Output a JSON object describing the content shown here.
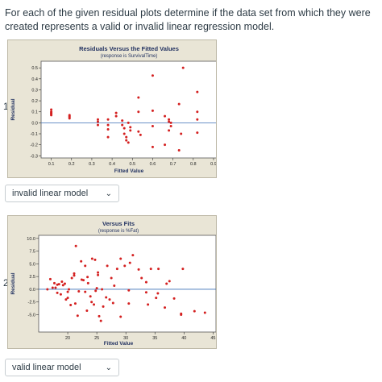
{
  "question": "For each of the given residual plots determine if the data set from which they were created represents a valid or invalid linear regression model.",
  "items": [
    {
      "number": "1.",
      "answer": "invalid linear model",
      "chart_data": {
        "type": "scatter",
        "title": "Residuals Versus the Fitted Values",
        "subtitle": "(response is SurvivalTime)",
        "xlabel": "Fitted Value",
        "ylabel": "Residual",
        "xlim": [
          0.05,
          0.92
        ],
        "ylim": [
          -0.32,
          0.56
        ],
        "xticks": [
          0.1,
          0.2,
          0.3,
          0.4,
          0.5,
          0.6,
          0.7,
          0.8,
          0.9
        ],
        "yticks": [
          -0.3,
          -0.2,
          -0.1,
          0.0,
          0.1,
          0.2,
          0.3,
          0.4,
          0.5
        ],
        "reference_line": 0,
        "marker_color": "#d42020",
        "points": [
          [
            0.1,
            0.12
          ],
          [
            0.1,
            0.1
          ],
          [
            0.1,
            0.09
          ],
          [
            0.1,
            0.08
          ],
          [
            0.1,
            0.07
          ],
          [
            0.19,
            0.07
          ],
          [
            0.19,
            0.06
          ],
          [
            0.19,
            0.05
          ],
          [
            0.19,
            0.04
          ],
          [
            0.33,
            0.03
          ],
          [
            0.33,
            0.01
          ],
          [
            0.33,
            -0.02
          ],
          [
            0.38,
            0.03
          ],
          [
            0.38,
            -0.02
          ],
          [
            0.38,
            -0.06
          ],
          [
            0.38,
            -0.13
          ],
          [
            0.42,
            0.06
          ],
          [
            0.42,
            0.09
          ],
          [
            0.45,
            0.02
          ],
          [
            0.45,
            -0.02
          ],
          [
            0.46,
            -0.05
          ],
          [
            0.46,
            -0.1
          ],
          [
            0.47,
            -0.13
          ],
          [
            0.47,
            -0.16
          ],
          [
            0.48,
            -0.18
          ],
          [
            0.48,
            0.0
          ],
          [
            0.49,
            -0.07
          ],
          [
            0.49,
            -0.04
          ],
          [
            0.53,
            0.1
          ],
          [
            0.53,
            0.23
          ],
          [
            0.53,
            -0.08
          ],
          [
            0.54,
            -0.11
          ],
          [
            0.6,
            0.43
          ],
          [
            0.6,
            0.11
          ],
          [
            0.6,
            -0.03
          ],
          [
            0.6,
            -0.22
          ],
          [
            0.66,
            -0.2
          ],
          [
            0.66,
            0.06
          ],
          [
            0.68,
            0.01
          ],
          [
            0.68,
            0.03
          ],
          [
            0.68,
            -0.07
          ],
          [
            0.69,
            0.0
          ],
          [
            0.69,
            -0.03
          ],
          [
            0.73,
            0.17
          ],
          [
            0.73,
            -0.25
          ],
          [
            0.74,
            -0.1
          ],
          [
            0.75,
            0.5
          ],
          [
            0.82,
            0.28
          ],
          [
            0.82,
            0.1
          ],
          [
            0.82,
            0.03
          ],
          [
            0.82,
            -0.09
          ]
        ]
      }
    },
    {
      "number": "2.",
      "answer": "valid linear model",
      "chart_data": {
        "type": "scatter",
        "title": "Versus Fits",
        "subtitle": "(response is %Fat)",
        "xlabel": "Fitted Value",
        "ylabel": "Residual",
        "xlim": [
          15,
          45.5
        ],
        "ylim": [
          -8.4,
          10.6
        ],
        "xticks": [
          20,
          25,
          30,
          35,
          40,
          45
        ],
        "yticks": [
          -5.0,
          -2.5,
          0.0,
          2.5,
          5.0,
          7.5,
          10.0
        ],
        "ytick_labels": [
          "-5.0",
          "-2.5",
          "0.0",
          "2.5",
          "5.0",
          "7.5",
          "10.0"
        ],
        "reference_line": 0,
        "marker_color": "#d42020",
        "points": [
          [
            16.5,
            0.0
          ],
          [
            17,
            2.0
          ],
          [
            17.4,
            0.3
          ],
          [
            17.7,
            1.2
          ],
          [
            17.9,
            0.3
          ],
          [
            18.2,
            0.9
          ],
          [
            18.2,
            -0.7
          ],
          [
            18.5,
            1.0
          ],
          [
            18.8,
            -1.0
          ],
          [
            19,
            1.5
          ],
          [
            19.2,
            0.8
          ],
          [
            19.5,
            1.1
          ],
          [
            19.7,
            -2.0
          ],
          [
            20,
            -1.7
          ],
          [
            20,
            -0.5
          ],
          [
            20.2,
            0.0
          ],
          [
            20.5,
            -3.1
          ],
          [
            20.7,
            2.2
          ],
          [
            21.1,
            2.7
          ],
          [
            21.1,
            3.1
          ],
          [
            21.3,
            -2.8
          ],
          [
            21.4,
            8.5
          ],
          [
            21.7,
            -5.2
          ],
          [
            21.9,
            -0.4
          ],
          [
            22.3,
            5.5
          ],
          [
            22.4,
            1.9
          ],
          [
            22.7,
            1.8
          ],
          [
            23,
            -0.5
          ],
          [
            23,
            4.6
          ],
          [
            23.3,
            -4.2
          ],
          [
            23.4,
            2.4
          ],
          [
            23.5,
            1.2
          ],
          [
            23.9,
            -1.4
          ],
          [
            24.1,
            -2.5
          ],
          [
            24.2,
            6.0
          ],
          [
            24.5,
            -3.0
          ],
          [
            24.7,
            5.8
          ],
          [
            24.8,
            -0.3
          ],
          [
            25,
            0.2
          ],
          [
            25.2,
            2.8
          ],
          [
            25.2,
            3.3
          ],
          [
            25.4,
            -5.3
          ],
          [
            25.7,
            -6.2
          ],
          [
            25.9,
            0.0
          ],
          [
            26.1,
            -3.4
          ],
          [
            26.6,
            -1.6
          ],
          [
            26.8,
            4.6
          ],
          [
            27.2,
            -2.0
          ],
          [
            27.5,
            2.2
          ],
          [
            27.8,
            -2.7
          ],
          [
            28,
            0.7
          ],
          [
            28.5,
            4.0
          ],
          [
            29.1,
            -5.4
          ],
          [
            29.1,
            6.0
          ],
          [
            29.8,
            4.6
          ],
          [
            30.5,
            -0.2
          ],
          [
            30.5,
            -2.8
          ],
          [
            30.7,
            5.2
          ],
          [
            31.2,
            6.7
          ],
          [
            32.2,
            3.9
          ],
          [
            32.7,
            2.2
          ],
          [
            33.5,
            1.4
          ],
          [
            33.5,
            -0.6
          ],
          [
            33.8,
            -3.0
          ],
          [
            34.3,
            4.0
          ],
          [
            35.2,
            -1.7
          ],
          [
            35.5,
            -0.8
          ],
          [
            35.6,
            4.0
          ],
          [
            36.7,
            -3.6
          ],
          [
            37,
            1.1
          ],
          [
            37.5,
            1.6
          ],
          [
            38.3,
            -1.8
          ],
          [
            39.5,
            -5.0
          ],
          [
            39.5,
            -4.8
          ],
          [
            39.8,
            4.0
          ],
          [
            41.8,
            -4.3
          ],
          [
            43.6,
            -4.6
          ]
        ]
      }
    }
  ]
}
